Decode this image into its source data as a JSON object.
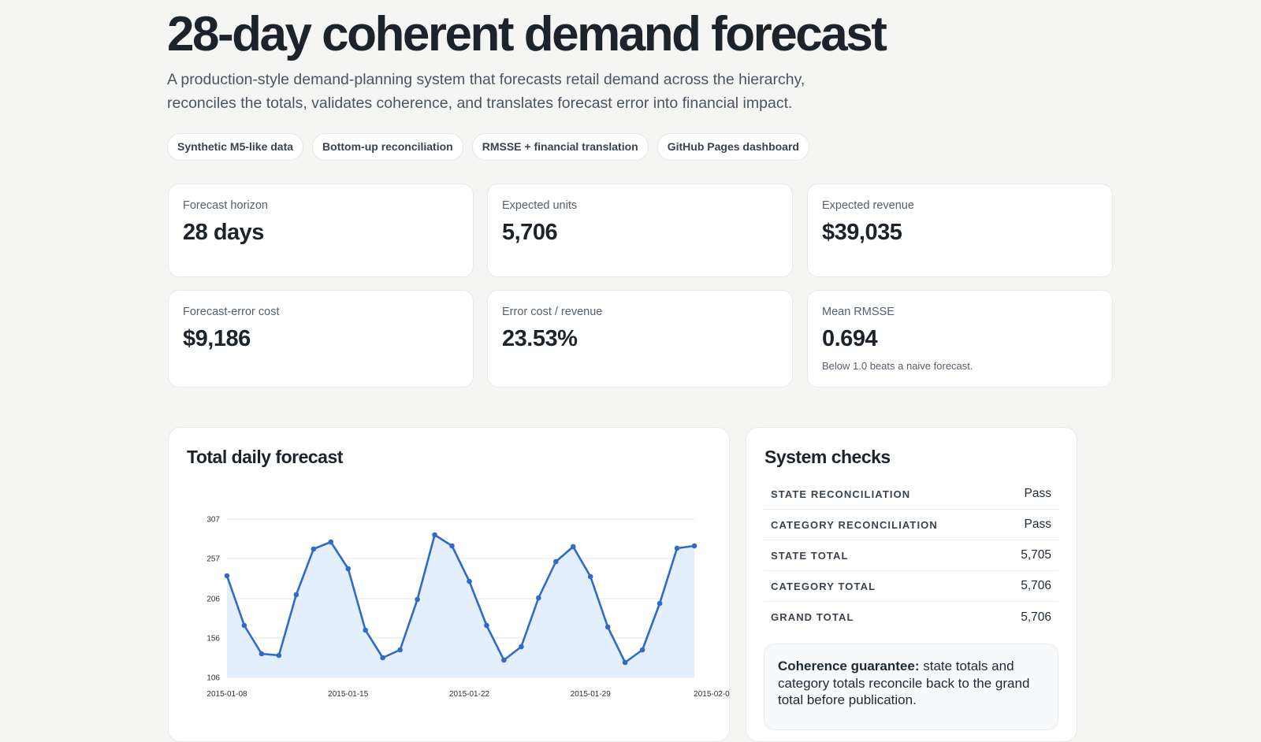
{
  "header": {
    "title": "28-day coherent demand forecast",
    "subtitle": "A production-style demand-planning system that forecasts retail demand across the hierarchy, reconciles the totals, validates coherence, and translates forecast error into financial impact.",
    "pills": [
      "Synthetic M5-like data",
      "Bottom-up reconciliation",
      "RMSSE + financial translation",
      "GitHub Pages dashboard"
    ]
  },
  "kpis": [
    {
      "label": "Forecast horizon",
      "value": "28 days"
    },
    {
      "label": "Expected units",
      "value": "5,706"
    },
    {
      "label": "Expected revenue",
      "value": "$39,035"
    },
    {
      "label": "Forecast-error cost",
      "value": "$9,186"
    },
    {
      "label": "Error cost / revenue",
      "value": "23.53%"
    },
    {
      "label": "Mean RMSSE",
      "value": "0.694",
      "note": "Below 1.0 beats a naive forecast."
    }
  ],
  "forecast_panel": {
    "title": "Total daily forecast"
  },
  "chart_data": {
    "type": "area",
    "title": "Total daily forecast",
    "xlabel": "",
    "ylabel": "",
    "x": [
      "2015-01-08",
      "2015-01-09",
      "2015-01-10",
      "2015-01-11",
      "2015-01-12",
      "2015-01-13",
      "2015-01-14",
      "2015-01-15",
      "2015-01-16",
      "2015-01-17",
      "2015-01-18",
      "2015-01-19",
      "2015-01-20",
      "2015-01-21",
      "2015-01-22",
      "2015-01-23",
      "2015-01-24",
      "2015-01-25",
      "2015-01-26",
      "2015-01-27",
      "2015-01-28",
      "2015-01-29",
      "2015-01-30",
      "2015-01-31",
      "2015-02-01",
      "2015-02-02",
      "2015-02-03",
      "2015-02-04"
    ],
    "series": [
      {
        "values": [
          235,
          172,
          136,
          134,
          211,
          269,
          278,
          244,
          166,
          131,
          141,
          205,
          287,
          273,
          228,
          172,
          128,
          145,
          207,
          253,
          272,
          234,
          170,
          125,
          141,
          200,
          270,
          273
        ]
      }
    ],
    "xtick_labels": [
      "2015-01-08",
      "2015-01-15",
      "2015-01-22",
      "2015-01-29",
      "2015-02-0"
    ],
    "ytick_labels": [
      "307",
      "257",
      "206",
      "156",
      "106"
    ],
    "ylim": [
      106,
      307
    ],
    "grid": true,
    "colors": {
      "line": "#2f6bc7",
      "fill": "#e3effc"
    }
  },
  "system_checks": {
    "title": "System checks",
    "rows": [
      {
        "label": "STATE RECONCILIATION",
        "value": "Pass"
      },
      {
        "label": "CATEGORY RECONCILIATION",
        "value": "Pass"
      },
      {
        "label": "STATE TOTAL",
        "value": "5,705"
      },
      {
        "label": "CATEGORY TOTAL",
        "value": "5,706"
      },
      {
        "label": "GRAND TOTAL",
        "value": "5,706"
      }
    ],
    "guarantee_bold": "Coherence guarantee:",
    "guarantee_text": " state totals and category totals reconcile back to the grand total before publication."
  }
}
